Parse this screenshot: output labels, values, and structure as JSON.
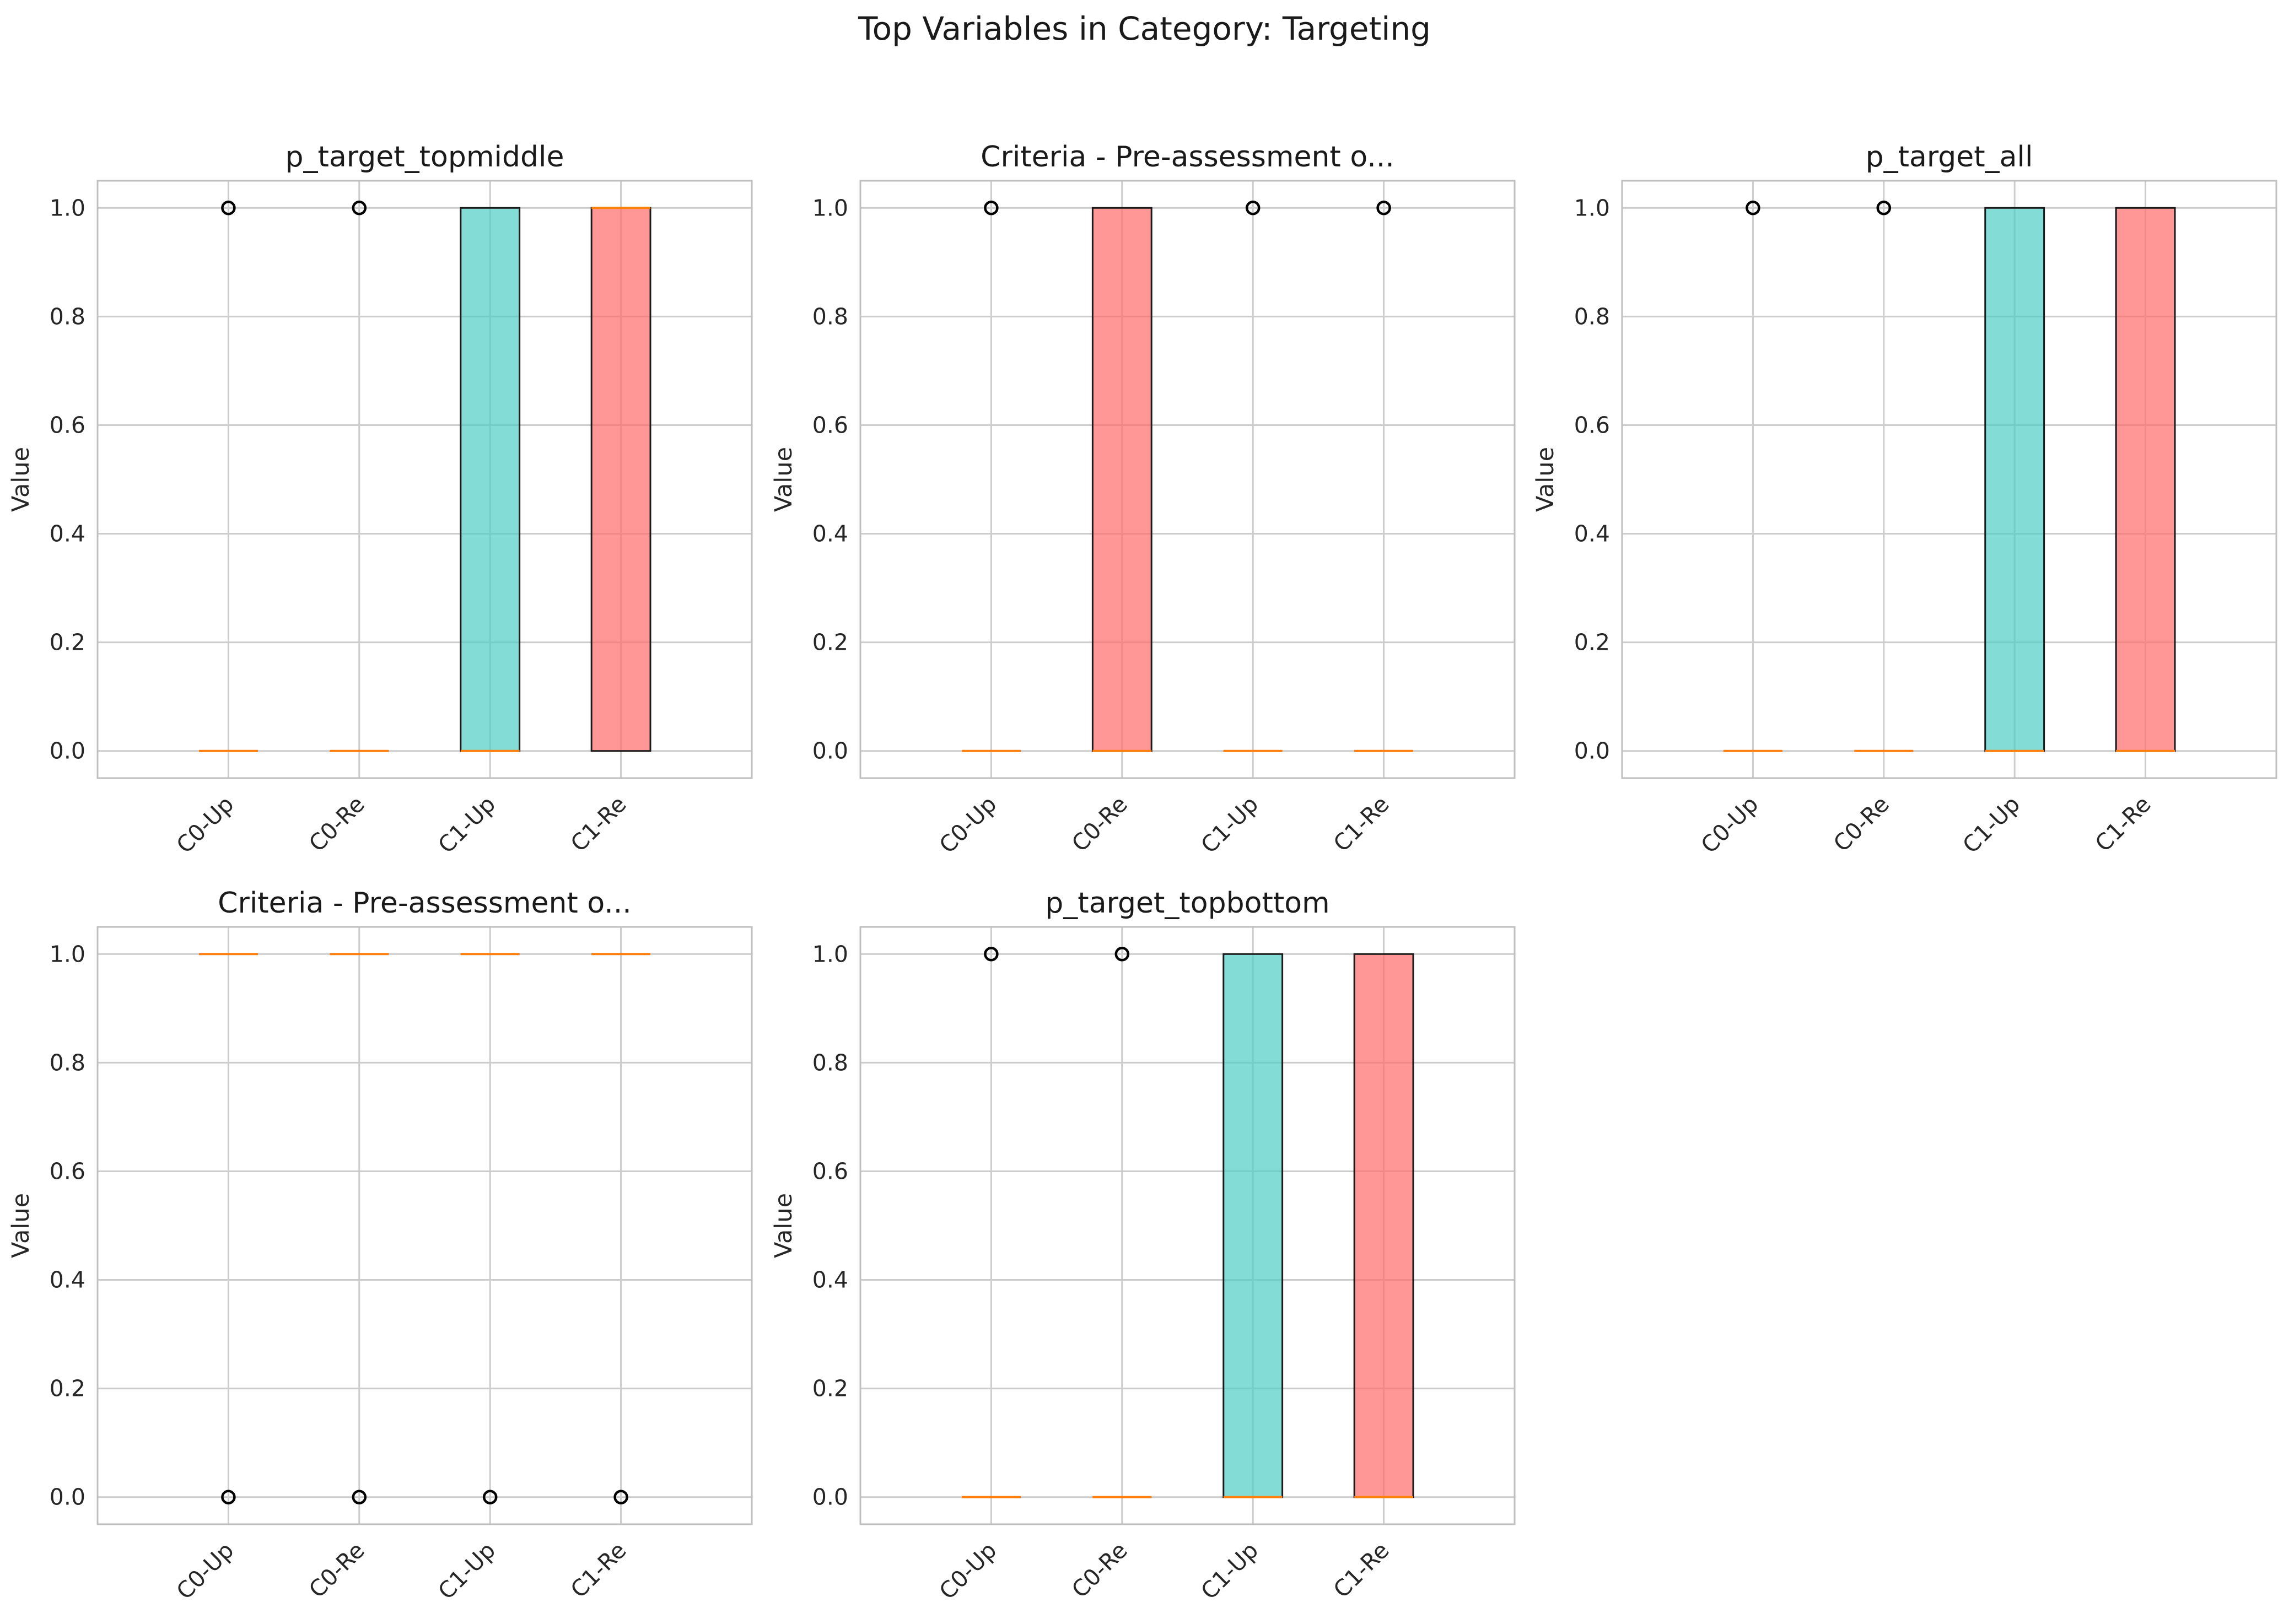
{
  "figure_title": "Top Variables in Category: Targeting",
  "colors": {
    "up_fill": "#4ECDC4",
    "re_fill": "#FF6B6B",
    "median_line": "#ff7f0e",
    "grid": "#cccccc",
    "frame": "#bfbfbf",
    "box_edge": "#1a1a1a"
  },
  "chart_data": [
    {
      "type": "box",
      "title": "p_target_topmiddle",
      "ylabel": "Value",
      "ylim": [
        -0.05,
        1.05
      ],
      "yticks": [
        "0.0",
        "0.2",
        "0.4",
        "0.6",
        "0.8",
        "1.0"
      ],
      "categories": [
        "C0-Up",
        "C0-Re",
        "C1-Up",
        "C1-Re"
      ],
      "boxes": [
        {
          "q1": 0,
          "median": 0,
          "q3": 0,
          "whisker_low": 0,
          "whisker_high": 0,
          "fliers": [
            1.0
          ],
          "fill": "up"
        },
        {
          "q1": 0,
          "median": 0,
          "q3": 0,
          "whisker_low": 0,
          "whisker_high": 0,
          "fliers": [
            1.0
          ],
          "fill": "re"
        },
        {
          "q1": 0,
          "median": 0,
          "q3": 1,
          "whisker_low": 0,
          "whisker_high": 1,
          "fliers": [],
          "fill": "up"
        },
        {
          "q1": 0,
          "median": 1,
          "q3": 1,
          "whisker_low": 0,
          "whisker_high": 1,
          "fliers": [],
          "fill": "re"
        }
      ]
    },
    {
      "type": "box",
      "title": "Criteria - Pre-assessment o...",
      "ylabel": "Value",
      "ylim": [
        -0.05,
        1.05
      ],
      "yticks": [
        "0.0",
        "0.2",
        "0.4",
        "0.6",
        "0.8",
        "1.0"
      ],
      "categories": [
        "C0-Up",
        "C0-Re",
        "C1-Up",
        "C1-Re"
      ],
      "boxes": [
        {
          "q1": 0,
          "median": 0,
          "q3": 0,
          "whisker_low": 0,
          "whisker_high": 0,
          "fliers": [
            1.0
          ],
          "fill": "up"
        },
        {
          "q1": 0,
          "median": 0,
          "q3": 1,
          "whisker_low": 0,
          "whisker_high": 1,
          "fliers": [],
          "fill": "re"
        },
        {
          "q1": 0,
          "median": 0,
          "q3": 0,
          "whisker_low": 0,
          "whisker_high": 0,
          "fliers": [
            1.0
          ],
          "fill": "up"
        },
        {
          "q1": 0,
          "median": 0,
          "q3": 0,
          "whisker_low": 0,
          "whisker_high": 0,
          "fliers": [
            1.0
          ],
          "fill": "re"
        }
      ]
    },
    {
      "type": "box",
      "title": "p_target_all",
      "ylabel": "Value",
      "ylim": [
        -0.05,
        1.05
      ],
      "yticks": [
        "0.0",
        "0.2",
        "0.4",
        "0.6",
        "0.8",
        "1.0"
      ],
      "categories": [
        "C0-Up",
        "C0-Re",
        "C1-Up",
        "C1-Re"
      ],
      "boxes": [
        {
          "q1": 0,
          "median": 0,
          "q3": 0,
          "whisker_low": 0,
          "whisker_high": 0,
          "fliers": [
            1.0
          ],
          "fill": "up"
        },
        {
          "q1": 0,
          "median": 0,
          "q3": 0,
          "whisker_low": 0,
          "whisker_high": 0,
          "fliers": [
            1.0
          ],
          "fill": "re"
        },
        {
          "q1": 0,
          "median": 0,
          "q3": 1,
          "whisker_low": 0,
          "whisker_high": 1,
          "fliers": [],
          "fill": "up"
        },
        {
          "q1": 0,
          "median": 0,
          "q3": 1,
          "whisker_low": 0,
          "whisker_high": 1,
          "fliers": [],
          "fill": "re"
        }
      ]
    },
    {
      "type": "box",
      "title": "Criteria - Pre-assessment o...",
      "ylabel": "Value",
      "ylim": [
        -0.05,
        1.05
      ],
      "yticks": [
        "0.0",
        "0.2",
        "0.4",
        "0.6",
        "0.8",
        "1.0"
      ],
      "categories": [
        "C0-Up",
        "C0-Re",
        "C1-Up",
        "C1-Re"
      ],
      "boxes": [
        {
          "q1": 1,
          "median": 1,
          "q3": 1,
          "whisker_low": 1,
          "whisker_high": 1,
          "fliers": [
            0.0
          ],
          "fill": "up"
        },
        {
          "q1": 1,
          "median": 1,
          "q3": 1,
          "whisker_low": 1,
          "whisker_high": 1,
          "fliers": [
            0.0
          ],
          "fill": "re"
        },
        {
          "q1": 1,
          "median": 1,
          "q3": 1,
          "whisker_low": 1,
          "whisker_high": 1,
          "fliers": [
            0.0
          ],
          "fill": "up"
        },
        {
          "q1": 1,
          "median": 1,
          "q3": 1,
          "whisker_low": 1,
          "whisker_high": 1,
          "fliers": [
            0.0
          ],
          "fill": "re"
        }
      ]
    },
    {
      "type": "box",
      "title": "p_target_topbottom",
      "ylabel": "Value",
      "ylim": [
        -0.05,
        1.05
      ],
      "yticks": [
        "0.0",
        "0.2",
        "0.4",
        "0.6",
        "0.8",
        "1.0"
      ],
      "categories": [
        "C0-Up",
        "C0-Re",
        "C1-Up",
        "C1-Re"
      ],
      "boxes": [
        {
          "q1": 0,
          "median": 0,
          "q3": 0,
          "whisker_low": 0,
          "whisker_high": 0,
          "fliers": [
            1.0
          ],
          "fill": "up"
        },
        {
          "q1": 0,
          "median": 0,
          "q3": 0,
          "whisker_low": 0,
          "whisker_high": 0,
          "fliers": [
            1.0
          ],
          "fill": "re"
        },
        {
          "q1": 0,
          "median": 0,
          "q3": 1,
          "whisker_low": 0,
          "whisker_high": 1,
          "fliers": [],
          "fill": "up"
        },
        {
          "q1": 0,
          "median": 0,
          "q3": 1,
          "whisker_low": 0,
          "whisker_high": 1,
          "fliers": [],
          "fill": "re"
        }
      ]
    }
  ]
}
